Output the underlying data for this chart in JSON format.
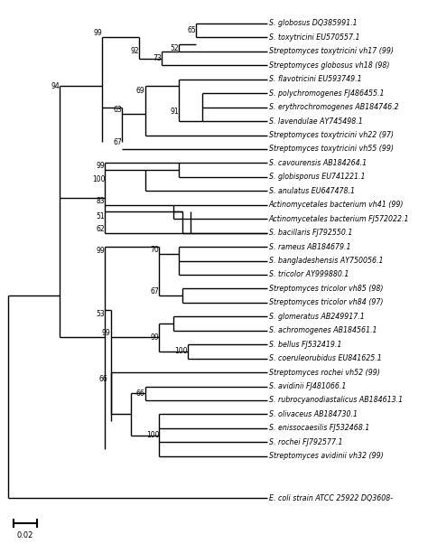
{
  "figsize": [
    4.74,
    6.02
  ],
  "dpi": 100,
  "taxa": [
    {
      "name": "S. globosus DQ385991.1",
      "y": 33
    },
    {
      "name": "S. toxytricini EU570557.1",
      "y": 32
    },
    {
      "name": "Streptomyces toxytricini vh17 (99)",
      "y": 31
    },
    {
      "name": "Streptomyces globosus vh18 (98)",
      "y": 30
    },
    {
      "name": "S. flavotricini EU593749.1",
      "y": 29
    },
    {
      "name": "S. polychromogenes FJ486455.1",
      "y": 28
    },
    {
      "name": "S. erythrochromogenes AB184746.2",
      "y": 27
    },
    {
      "name": "S. lavendulae AY745498.1",
      "y": 26
    },
    {
      "name": "Streptomyces toxytricini vh22 (97)",
      "y": 25
    },
    {
      "name": "Streptomyces toxytricini vh55 (99)",
      "y": 24
    },
    {
      "name": "S. cavourensis AB184264.1",
      "y": 23
    },
    {
      "name": "S. globisporus EU741221.1",
      "y": 22
    },
    {
      "name": "S. anulatus EU647478.1",
      "y": 21
    },
    {
      "name": "Actinomycetales bacterium vh41 (99)",
      "y": 20
    },
    {
      "name": "Actinomycetales bacterium FJ572022.1",
      "y": 19
    },
    {
      "name": "S. bacillaris FJ792550.1",
      "y": 18
    },
    {
      "name": "S. rameus AB184679.1",
      "y": 17
    },
    {
      "name": "S. bangladeshensis AY750056.1",
      "y": 16
    },
    {
      "name": "S. tricolor AY999880.1",
      "y": 15
    },
    {
      "name": "Streptomyces tricolor vh85 (98)",
      "y": 14
    },
    {
      "name": "Streptomyces tricolor vh84 (97)",
      "y": 13
    },
    {
      "name": "S. glomeratus AB249917.1",
      "y": 12
    },
    {
      "name": "S. achromogenes AB184561.1",
      "y": 11
    },
    {
      "name": "S. bellus FJ532419.1",
      "y": 10
    },
    {
      "name": "S. coeruleorubidus EU841625.1",
      "y": 9
    },
    {
      "name": "Streptomyces rochei vh52 (99)",
      "y": 8
    },
    {
      "name": "S. avidinii FJ481066.1",
      "y": 7
    },
    {
      "name": "S. rubrocyanodiastalicus AB184613.1",
      "y": 6
    },
    {
      "name": "S. olivaceus AB184730.1",
      "y": 5
    },
    {
      "name": "S. enissocaesilis FJ532468.1",
      "y": 4
    },
    {
      "name": "S. rochei FJ792577.1",
      "y": 3
    },
    {
      "name": "Streptomyces avidinii vh32 (99)",
      "y": 2
    },
    {
      "name": "E. coli strain ATCC 25922 DQ3608-",
      "y": -1
    }
  ]
}
